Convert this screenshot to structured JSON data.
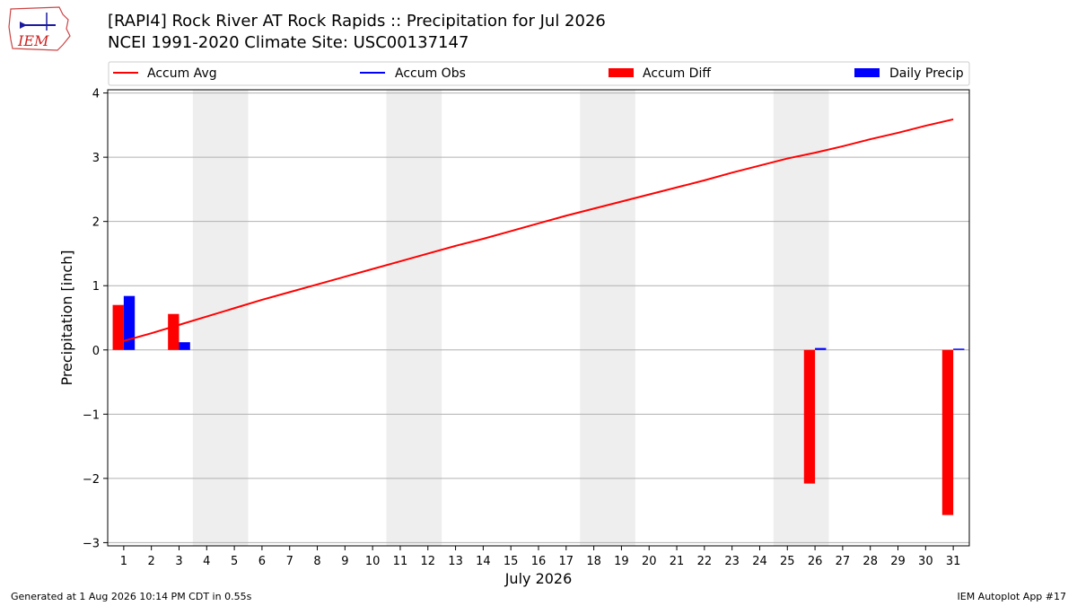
{
  "header": {
    "title_line1": "[RAPI4] Rock River  AT Rock Rapids :: Precipitation for Jul 2026",
    "title_line2": "NCEI 1991-2020 Climate Site: USC00137147",
    "logo_text": "IEM"
  },
  "footer": {
    "generated": "Generated at 1 Aug 2026 10:14 PM CDT in 0.55s",
    "app": "IEM Autoplot App #17"
  },
  "colors": {
    "accum_avg": "#ff0000",
    "accum_obs": "#0000ff",
    "accum_diff": "#ff0000",
    "daily_precip": "#0000ff",
    "weekend_shade": "#eeeeee"
  },
  "chart_data": {
    "type": "bar",
    "xlabel": "July 2026",
    "ylabel": "Precipitation [inch]",
    "ylim": [
      -3.05,
      4.05
    ],
    "yticks": [
      -3,
      -2,
      -1,
      0,
      1,
      2,
      3,
      4
    ],
    "ytick_labels": [
      "−3",
      "−2",
      "−1",
      "0",
      "1",
      "2",
      "3",
      "4"
    ],
    "days": [
      1,
      2,
      3,
      4,
      5,
      6,
      7,
      8,
      9,
      10,
      11,
      12,
      13,
      14,
      15,
      16,
      17,
      18,
      19,
      20,
      21,
      22,
      23,
      24,
      25,
      26,
      27,
      28,
      29,
      30,
      31
    ],
    "weekends": [
      [
        4,
        5
      ],
      [
        11,
        12
      ],
      [
        18,
        19
      ],
      [
        25,
        26
      ]
    ],
    "grid": "y",
    "legend_position": "top",
    "legend": [
      "Accum Avg",
      "Accum Obs",
      "Accum Diff",
      "Daily Precip"
    ],
    "series": [
      {
        "name": "Accum Avg",
        "type": "line",
        "values": [
          0.14,
          0.26,
          0.39,
          0.52,
          0.65,
          0.78,
          0.9,
          1.02,
          1.14,
          1.26,
          1.38,
          1.5,
          1.62,
          1.73,
          1.85,
          1.97,
          2.09,
          2.2,
          2.31,
          2.42,
          2.53,
          2.64,
          2.76,
          2.87,
          2.98,
          3.07,
          3.17,
          3.28,
          3.38,
          3.49,
          3.59
        ]
      },
      {
        "name": "Accum Obs",
        "type": "line",
        "values": []
      },
      {
        "name": "Accum Diff",
        "type": "bar",
        "values": [
          0.7,
          null,
          0.56,
          null,
          null,
          null,
          null,
          null,
          null,
          null,
          null,
          null,
          null,
          null,
          null,
          null,
          null,
          null,
          null,
          null,
          null,
          null,
          null,
          null,
          null,
          -2.08,
          null,
          null,
          null,
          null,
          -2.57
        ]
      },
      {
        "name": "Daily Precip",
        "type": "bar",
        "values": [
          0.84,
          null,
          0.12,
          null,
          null,
          null,
          null,
          null,
          null,
          null,
          null,
          null,
          null,
          null,
          null,
          null,
          null,
          null,
          null,
          null,
          null,
          null,
          null,
          null,
          null,
          0.03,
          null,
          null,
          null,
          null,
          0.02
        ]
      }
    ]
  }
}
